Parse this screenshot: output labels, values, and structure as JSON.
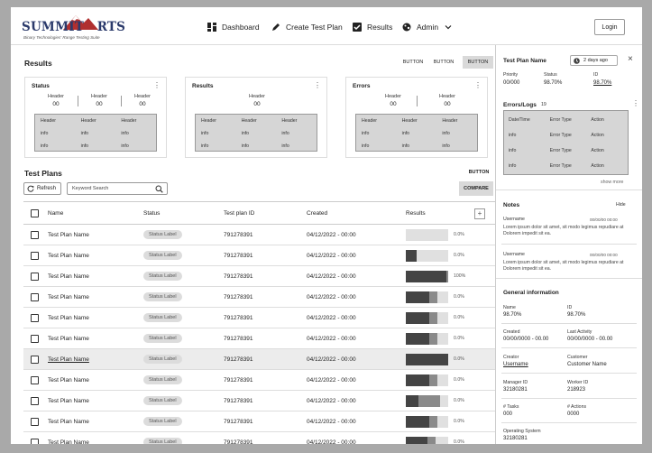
{
  "brand": {
    "name_left": "SUMMIT",
    "name_right": "RTS",
    "tagline": "Binary Technologies' Range Testing Suite"
  },
  "nav": [
    {
      "label": "Dashboard",
      "icon": "dashboard-icon"
    },
    {
      "label": "Create Test Plan",
      "icon": "pencil-icon"
    },
    {
      "label": "Results",
      "icon": "checkbox-icon"
    },
    {
      "label": "Admin",
      "icon": "palette-icon"
    }
  ],
  "login_label": "Login",
  "results": {
    "title": "Results",
    "buttons": [
      "BUTTON",
      "BUTTON",
      "BUTTON"
    ],
    "cards": [
      {
        "title": "Status",
        "headers": [
          {
            "h": "Header",
            "v": "00"
          },
          {
            "h": "Header",
            "v": "00"
          },
          {
            "h": "Header",
            "v": "00"
          }
        ],
        "table": {
          "head": [
            "Header",
            "Header",
            "Header"
          ],
          "rows": [
            [
              "info",
              "info",
              "info"
            ],
            [
              "info",
              "info",
              "info"
            ]
          ]
        }
      },
      {
        "title": "Results",
        "headers": [
          {
            "h": "Header",
            "v": "00"
          }
        ],
        "table": {
          "head": [
            "Header",
            "Header",
            "Header"
          ],
          "rows": [
            [
              "info",
              "info",
              "info"
            ],
            [
              "info",
              "info",
              "info"
            ]
          ]
        }
      },
      {
        "title": "Errors",
        "headers": [
          {
            "h": "Header",
            "v": "00"
          },
          {
            "h": "Header",
            "v": "00"
          }
        ],
        "table": {
          "head": [
            "Header",
            "Header",
            "Header"
          ],
          "rows": [
            [
              "info",
              "info",
              "info"
            ],
            [
              "info",
              "info",
              "info"
            ]
          ]
        }
      }
    ]
  },
  "test_plans": {
    "title": "Test Plans",
    "button": "BUTTON",
    "refresh_label": "Refresh",
    "search_placeholder": "Keyword Search",
    "compare_label": "COMPARE",
    "columns": [
      "Name",
      "Status",
      "Test plan ID",
      "Created",
      "Results"
    ],
    "add_symbol": "+",
    "rows": [
      {
        "name": "Test Plan Name",
        "status": "Status Label",
        "id": "791278391",
        "created": "04/12/2022 - 00:00",
        "pct": "0.0%",
        "bar": [
          0,
          0,
          1
        ]
      },
      {
        "name": "Test Plan Name",
        "status": "Status Label",
        "id": "791278391",
        "created": "04/12/2022 - 00:00",
        "pct": "0.0%",
        "bar": [
          0.26,
          0,
          0.74
        ]
      },
      {
        "name": "Test Plan Name",
        "status": "Status Label",
        "id": "791278391",
        "created": "04/12/2022 - 00:00",
        "pct": "100%",
        "bar": [
          0.96,
          0.04,
          0
        ]
      },
      {
        "name": "Test Plan Name",
        "status": "Status Label",
        "id": "791278391",
        "created": "04/12/2022 - 00:00",
        "pct": "0.0%",
        "bar": [
          0.55,
          0.2,
          0.25
        ]
      },
      {
        "name": "Test Plan Name",
        "status": "Status Label",
        "id": "791278391",
        "created": "04/12/2022 - 00:00",
        "pct": "0.0%",
        "bar": [
          0.55,
          0.2,
          0.25
        ]
      },
      {
        "name": "Test Plan Name",
        "status": "Status Label",
        "id": "791278391",
        "created": "04/12/2022 - 00:00",
        "pct": "0.0%",
        "bar": [
          0.55,
          0.2,
          0.25
        ]
      },
      {
        "name": "Test Plan Name",
        "status": "Status Label",
        "id": "791278391",
        "created": "04/12/2022 - 00:00",
        "pct": "0.0%",
        "bar": [
          1,
          0,
          0
        ],
        "highlight": true
      },
      {
        "name": "Test Plan Name",
        "status": "Status Label",
        "id": "791278391",
        "created": "04/12/2022 - 00:00",
        "pct": "0.0%",
        "bar": [
          0.55,
          0.2,
          0.25
        ]
      },
      {
        "name": "Test Plan Name",
        "status": "Status Label",
        "id": "791278391",
        "created": "04/12/2022 - 00:00",
        "pct": "0.0%",
        "bar": [
          0.3,
          0.5,
          0.2
        ]
      },
      {
        "name": "Test Plan Name",
        "status": "Status Label",
        "id": "791278391",
        "created": "04/12/2022 - 00:00",
        "pct": "0.0%",
        "bar": [
          0.55,
          0.2,
          0.25
        ]
      },
      {
        "name": "Test Plan Name",
        "status": "Status Label",
        "id": "791278391",
        "created": "04/12/2022 - 00:00",
        "pct": "0.0%",
        "bar": [
          0.5,
          0.2,
          0.3
        ]
      }
    ]
  },
  "panel": {
    "title": "Test Plan Name",
    "age": "2 days ago",
    "close": "×",
    "priority": {
      "label": "Priority",
      "value": "00/000"
    },
    "status": {
      "label": "Status",
      "value": "98.70%"
    },
    "id": {
      "label": "ID",
      "value": "98.70%"
    },
    "errors_title": "Errors/Logs",
    "errors_count": "19",
    "errors_head": [
      "Date/Time",
      "Error Type",
      "Action"
    ],
    "errors_rows": [
      [
        "info",
        "Error Type",
        "Action"
      ],
      [
        "info",
        "Error Type",
        "Action"
      ],
      [
        "info",
        "Error Type",
        "Action"
      ]
    ],
    "show_more": "show more",
    "notes_title": "Notes",
    "notes_hide": "Hide",
    "notes": [
      {
        "user": "Username",
        "date": "00/00/00 00:00",
        "text": "Lorem ipsum dolor sit amet, sit modo legimus repudiare at Dolorem impedit sit ea."
      },
      {
        "user": "Username",
        "date": "00/00/00 00:00",
        "text": "Lorem ipsum dolor sit amet, sit modo legimus repudiare at Dolorem impedit sit ea."
      }
    ],
    "general_title": "General information",
    "general": [
      {
        "l1": "Name",
        "v1": "98.70%",
        "l2": "ID",
        "v2": "98.70%"
      },
      {
        "l1": "Created",
        "v1": "00/00/0000 - 00.00",
        "l2": "Last Activity",
        "v2": "00/00/0000 - 00.00"
      },
      {
        "l1": "Creator",
        "v1": "Username",
        "l2": "Customer",
        "v2": "Customer Name"
      },
      {
        "l1": "Manager ID",
        "v1": "32180281",
        "l2": "Worker ID",
        "v2": "218923"
      },
      {
        "l1": "# Tasks",
        "v1": "000",
        "l2": "# Actions",
        "v2": "0000"
      },
      {
        "l1": "Operating System",
        "v1": "32180281",
        "l2": "",
        "v2": ""
      }
    ]
  },
  "colors": {
    "bar_dark": "#444444",
    "bar_mid": "#8a8a8a",
    "bar_bg": "#e0e0e0",
    "brand_blue": "#2b3a6b",
    "brand_red": "#b03030"
  }
}
